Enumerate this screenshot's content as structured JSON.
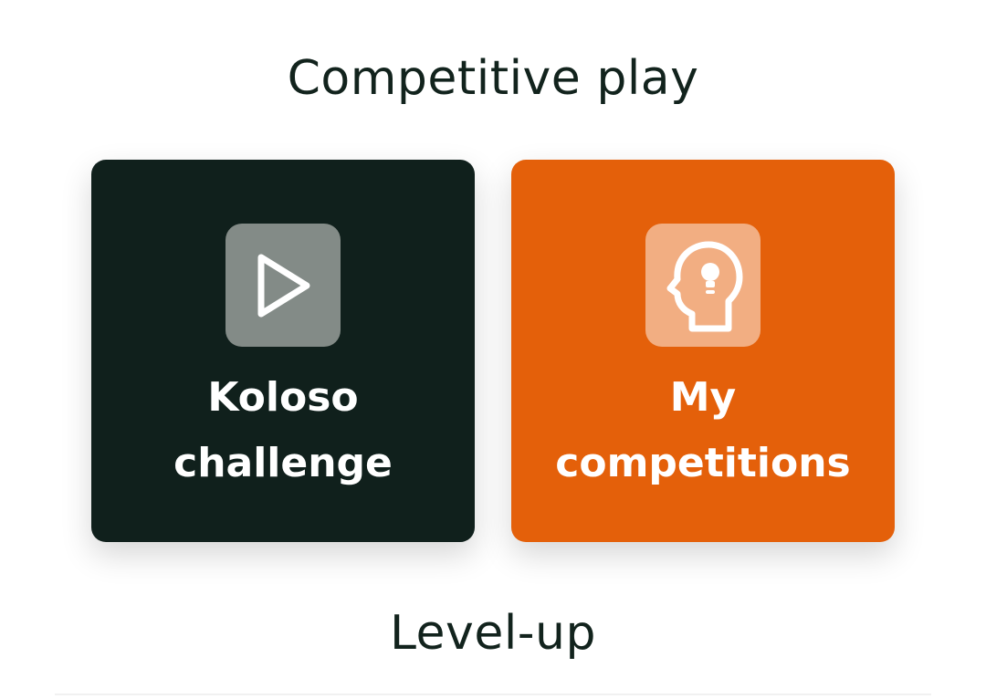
{
  "sections": {
    "competitive_play_title": "Competitive play",
    "level_up_title": "Level-up"
  },
  "cards": [
    {
      "line1": "Koloso",
      "line2": "challenge",
      "icon": "play-icon",
      "background": "#10201c",
      "icon_background": "#838b87"
    },
    {
      "line1": "My",
      "line2": "competitions",
      "icon": "head-lightbulb-icon",
      "background": "#e4600a",
      "icon_background": "#f2ae82"
    }
  ],
  "colors": {
    "title_text": "#12231d",
    "card_text": "#ffffff"
  }
}
